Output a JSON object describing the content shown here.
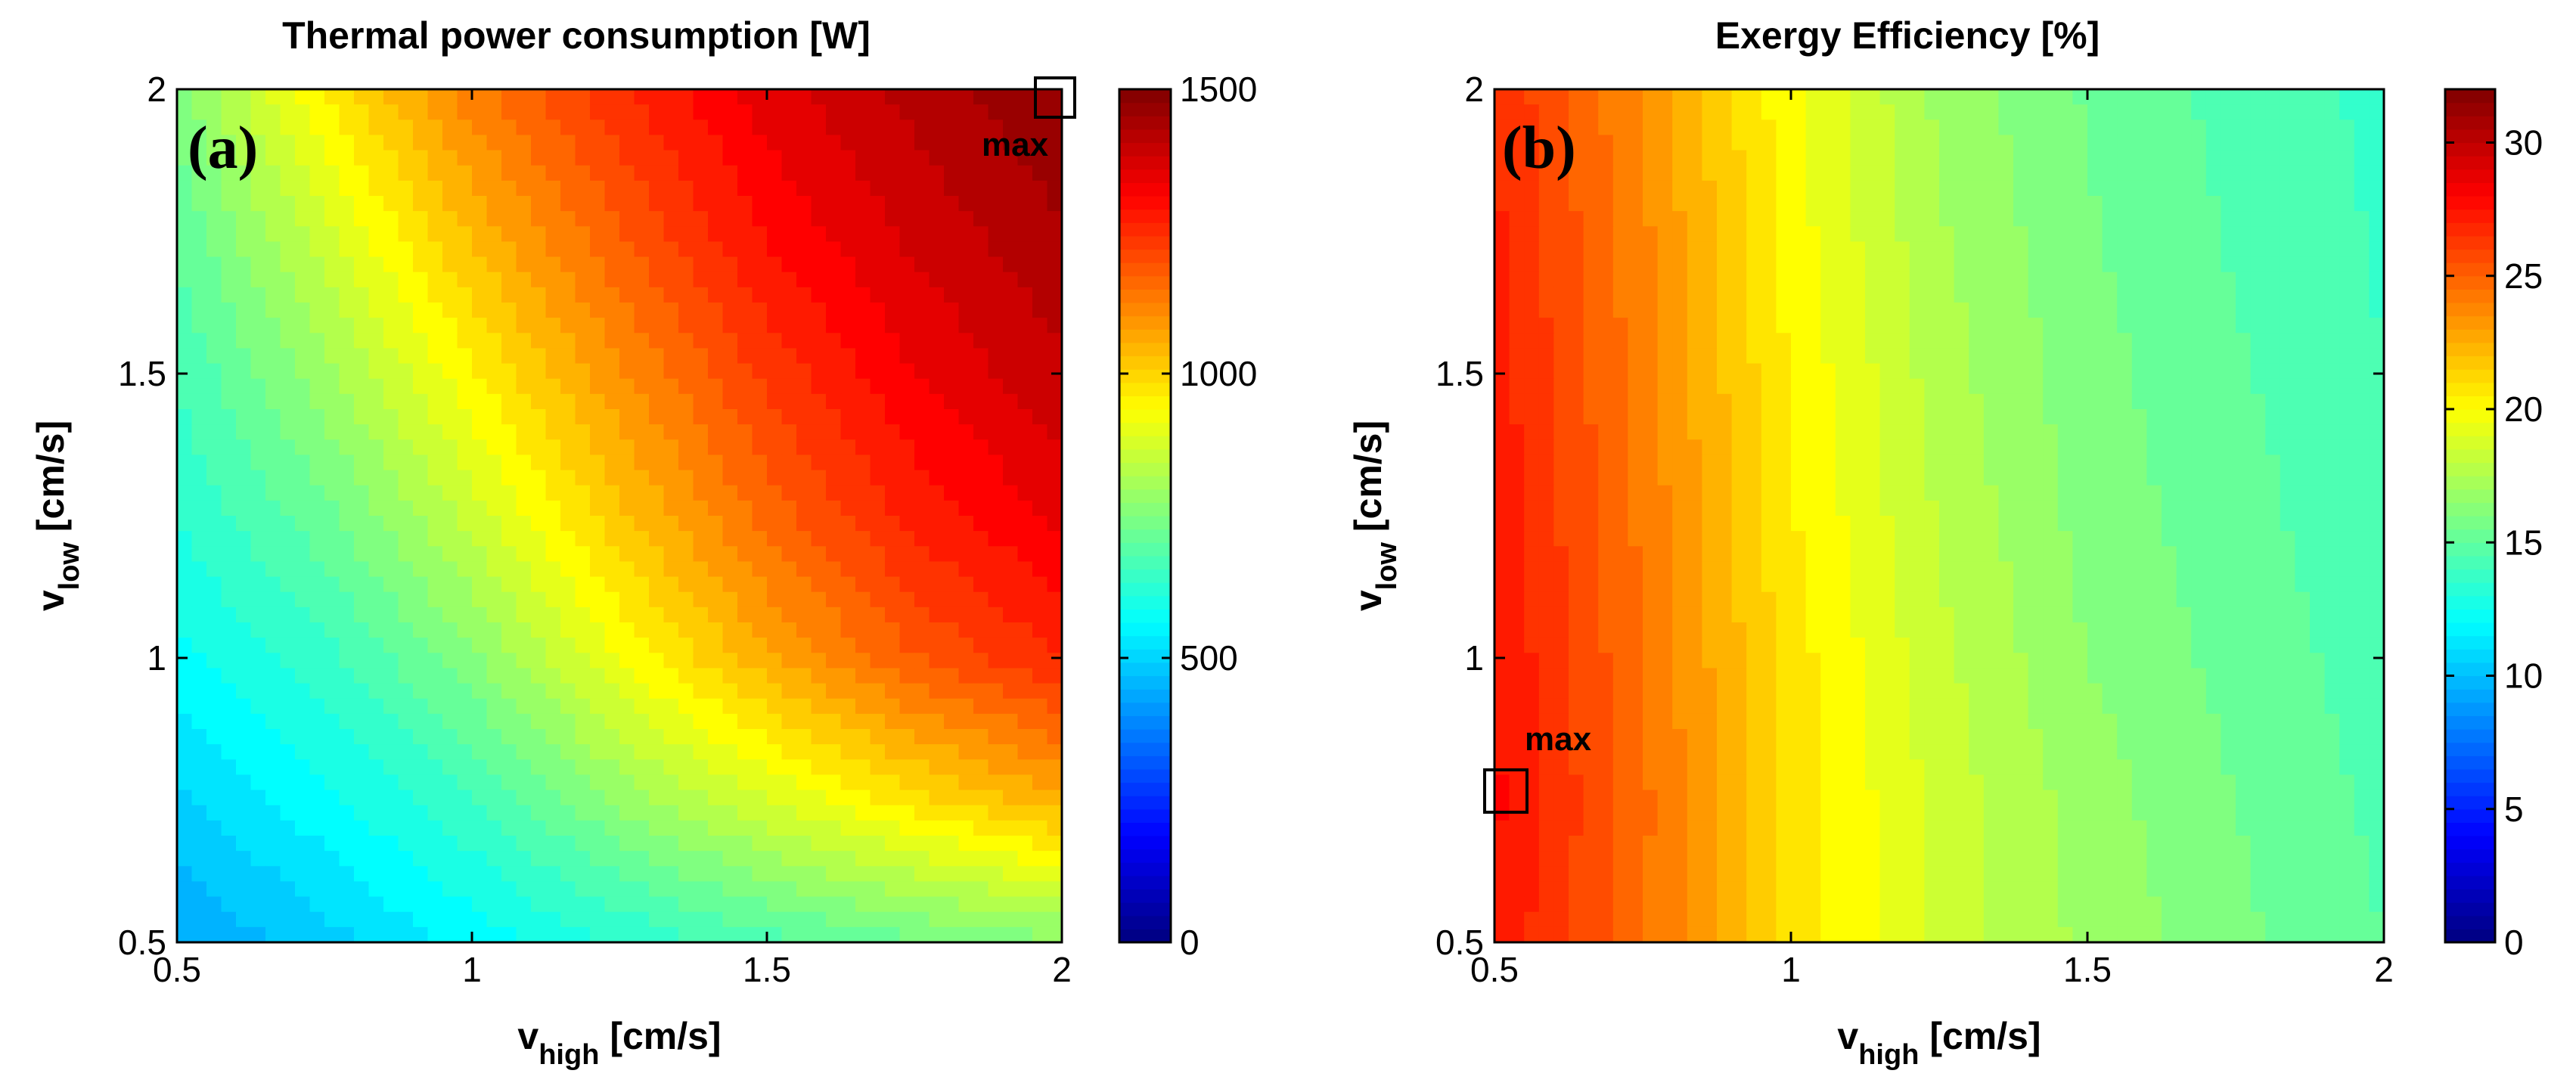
{
  "chart_data": [
    {
      "type": "heatmap",
      "panel_label": "(a)",
      "title": "Thermal power consumption [W]",
      "xlabel": {
        "base": "v",
        "sub": "high",
        "unit": " [cm/s]"
      },
      "ylabel": {
        "base": "v",
        "sub": "low",
        "unit": " [cm/s]"
      },
      "xlim": [
        0.5,
        2
      ],
      "ylim": [
        0.5,
        2
      ],
      "xticks": [
        0.5,
        1,
        1.5,
        2
      ],
      "yticks": [
        0.5,
        1,
        1.5,
        2
      ],
      "xtick_labels": [
        "0.5",
        "1",
        "1.5",
        "2"
      ],
      "ytick_labels": [
        "0.5",
        "1",
        "1.5",
        "2"
      ],
      "x": [
        0.5,
        0.75,
        1.0,
        1.25,
        1.5,
        1.75,
        2.0
      ],
      "y": [
        0.5,
        0.75,
        1.0,
        1.25,
        1.5,
        1.75,
        2.0
      ],
      "z": [
        [
          430,
          490,
          560,
          620,
          680,
          720,
          760
        ],
        [
          500,
          570,
          650,
          780,
          880,
          980,
          1060
        ],
        [
          570,
          640,
          760,
          920,
          1060,
          1180,
          1260
        ],
        [
          620,
          720,
          860,
          1020,
          1160,
          1270,
          1340
        ],
        [
          660,
          790,
          950,
          1100,
          1230,
          1330,
          1400
        ],
        [
          700,
          870,
          1040,
          1180,
          1300,
          1380,
          1440
        ],
        [
          750,
          960,
          1130,
          1250,
          1350,
          1420,
          1480
        ]
      ],
      "colorbar": {
        "range": [
          0,
          1500
        ],
        "ticks": [
          0,
          500,
          1000,
          1500
        ],
        "tick_labels": [
          "0",
          "500",
          "1000",
          "1500"
        ]
      },
      "annotation": {
        "text": "max",
        "x": 1.99,
        "y": 1.99
      }
    },
    {
      "type": "heatmap",
      "panel_label": "(b)",
      "title": "Exergy Efficiency [%]",
      "xlabel": {
        "base": "v",
        "sub": "high",
        "unit": " [cm/s]"
      },
      "ylabel": {
        "base": "v",
        "sub": "low",
        "unit": " [cm/s]"
      },
      "xlim": [
        0.5,
        2
      ],
      "ylim": [
        0.5,
        2
      ],
      "xticks": [
        0.5,
        1,
        1.5,
        2
      ],
      "yticks": [
        0.5,
        1,
        1.5,
        2
      ],
      "xtick_labels": [
        "0.5",
        "1",
        "1.5",
        "2"
      ],
      "ytick_labels": [
        "0.5",
        "1",
        "1.5",
        "2"
      ],
      "x": [
        0.5,
        0.75,
        1.0,
        1.25,
        1.5,
        1.75,
        2.0
      ],
      "y": [
        0.5,
        0.75,
        1.0,
        1.25,
        1.5,
        1.75,
        2.0
      ],
      "z": [
        [
          27.5,
          24.5,
          21.0,
          18.5,
          17.0,
          15.8,
          14.8
        ],
        [
          27.8,
          24.6,
          21.0,
          18.5,
          16.8,
          15.6,
          14.6
        ],
        [
          27.6,
          24.4,
          20.8,
          18.2,
          16.4,
          15.3,
          14.4
        ],
        [
          27.4,
          24.2,
          20.5,
          17.9,
          16.1,
          15.1,
          14.2
        ],
        [
          27.2,
          24.0,
          20.3,
          17.6,
          15.9,
          14.9,
          14.0
        ],
        [
          27.0,
          23.8,
          20.0,
          17.3,
          15.7,
          14.7,
          13.9
        ],
        [
          26.8,
          23.5,
          19.8,
          17.0,
          15.5,
          14.5,
          13.8
        ]
      ],
      "colorbar": {
        "range": [
          0,
          32
        ],
        "ticks": [
          0,
          5,
          10,
          15,
          20,
          25,
          30
        ],
        "tick_labels": [
          "0",
          "5",
          "10",
          "15",
          "20",
          "25",
          "30"
        ]
      },
      "annotation": {
        "text": "max",
        "x": 0.52,
        "y": 0.77
      }
    }
  ]
}
